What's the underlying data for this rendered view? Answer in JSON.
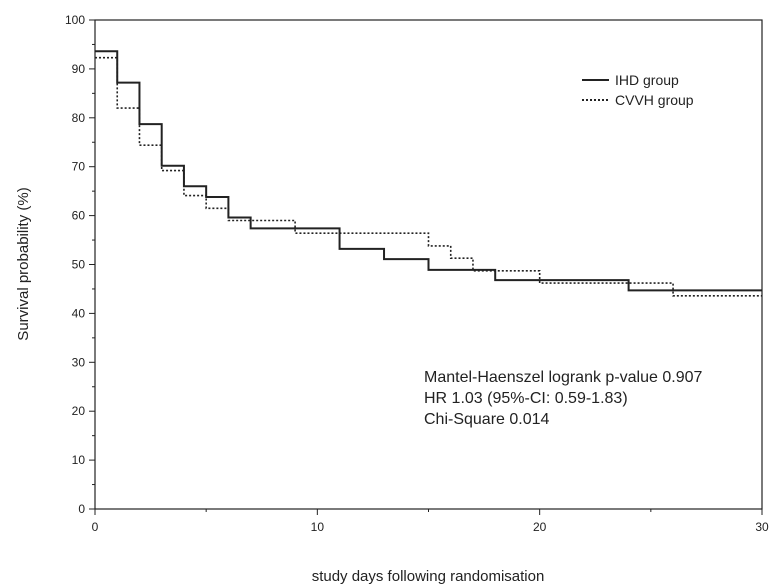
{
  "chart_data": {
    "type": "line",
    "title": "",
    "xlabel": "study days following randomisation",
    "ylabel": "Survival probability (%)",
    "xlim": [
      0,
      30
    ],
    "ylim": [
      0,
      100
    ],
    "x_ticks": [
      0,
      10,
      20,
      30
    ],
    "y_ticks": [
      0,
      10,
      20,
      30,
      40,
      50,
      60,
      70,
      80,
      90,
      100
    ],
    "grid": false,
    "legend_position": "top-right",
    "step": true,
    "series": [
      {
        "name": "IHD group",
        "style": "solid",
        "color": "#222222",
        "x": [
          0,
          1,
          2,
          3,
          4,
          5,
          6,
          7,
          11,
          13,
          15,
          17,
          18,
          24,
          30
        ],
        "y": [
          93.6,
          87.2,
          78.7,
          70.2,
          66.0,
          63.8,
          59.6,
          57.4,
          53.2,
          51.1,
          48.9,
          48.9,
          46.8,
          44.7,
          44.7
        ]
      },
      {
        "name": "CVVH group",
        "style": "dotted",
        "color": "#222222",
        "x": [
          0,
          1,
          2,
          3,
          4,
          5,
          6,
          9,
          11,
          15,
          16,
          17,
          20,
          26,
          30
        ],
        "y": [
          92.3,
          82.0,
          74.4,
          69.2,
          64.1,
          61.5,
          59.0,
          56.4,
          56.4,
          53.8,
          51.3,
          48.7,
          46.2,
          43.6,
          43.6
        ]
      }
    ],
    "annotations": [
      "Mantel-Haenszel logrank p-value 0.907",
      "HR 1.03 (95%-CI: 0.59-1.83)",
      "Chi-Square 0.014"
    ]
  }
}
